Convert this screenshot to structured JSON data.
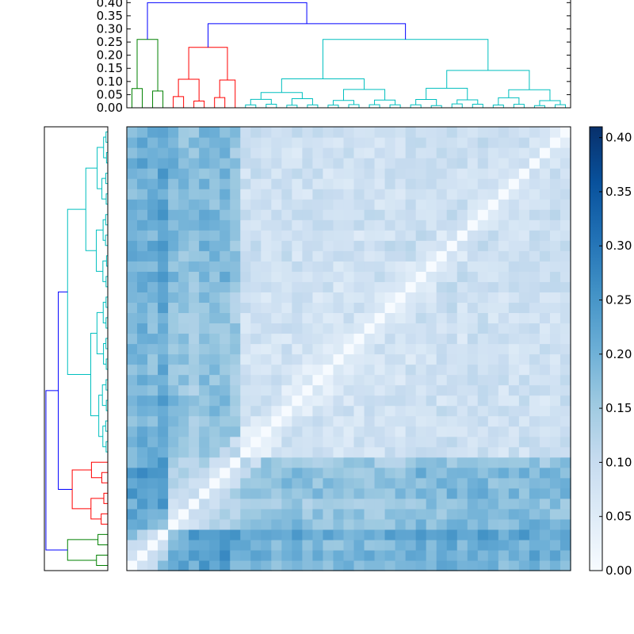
{
  "chart_data": {
    "type": "heatmap",
    "title": "",
    "xlabel": "",
    "ylabel": "",
    "n": 43,
    "vmin": 0.0,
    "vmax": 0.41,
    "colormap": "Blues",
    "colorbar": {
      "ticks": [
        0.0,
        0.05,
        0.1,
        0.15,
        0.2,
        0.25,
        0.3,
        0.35,
        0.4
      ],
      "tick_labels": [
        "0.00",
        "0.05",
        "0.10",
        "0.15",
        "0.20",
        "0.25",
        "0.30",
        "0.35",
        "0.40"
      ]
    },
    "dendrogram_top": {
      "ylim": [
        0,
        0.41
      ],
      "ticks": [
        0.0,
        0.05,
        0.1,
        0.15,
        0.2,
        0.25,
        0.3,
        0.35,
        0.4
      ],
      "tick_labels": [
        "0.00",
        "0.05",
        "0.10",
        "0.15",
        "0.20",
        "0.25",
        "0.30",
        "0.35",
        "0.40"
      ]
    },
    "clusters": [
      {
        "color": "#008000",
        "start": 0,
        "end": 3
      },
      {
        "color": "#ff0000",
        "start": 4,
        "end": 10
      },
      {
        "color": "#00bfbf",
        "start": 11,
        "end": 42
      }
    ],
    "link_color_above": "#0000ff",
    "leaf_row_means": [
      0.24,
      0.26,
      0.24,
      0.3,
      0.22,
      0.2,
      0.18,
      0.22,
      0.21,
      0.22,
      0.17,
      0.14,
      0.14,
      0.13,
      0.13,
      0.14,
      0.13,
      0.12,
      0.13,
      0.13,
      0.12,
      0.13,
      0.12,
      0.13,
      0.12,
      0.13,
      0.13,
      0.14,
      0.16,
      0.15,
      0.15,
      0.17,
      0.14,
      0.16,
      0.17,
      0.15,
      0.14,
      0.15,
      0.15,
      0.16,
      0.14,
      0.15,
      0.15
    ],
    "merges": [
      {
        "a": 0,
        "b": 1,
        "h": 0.26
      },
      {
        "a": 2,
        "b": 3,
        "h": 0.1
      },
      {
        "a": 2,
        "b": 3,
        "h": 0.13,
        "group": true
      },
      {
        "a": 4,
        "b": 5,
        "h": 0.12
      },
      {
        "a": 6,
        "b": 7,
        "h": 0.05
      },
      {
        "a": 8,
        "b": 9,
        "h": 0.12
      },
      {
        "a": 9,
        "b": 10,
        "h": 0.14
      },
      {
        "a": 4,
        "b": 10,
        "h": 0.22
      },
      {
        "a": 0,
        "b": 10,
        "h": 0.4
      },
      {
        "a": 11,
        "b": 42,
        "h": 0.32
      }
    ]
  }
}
